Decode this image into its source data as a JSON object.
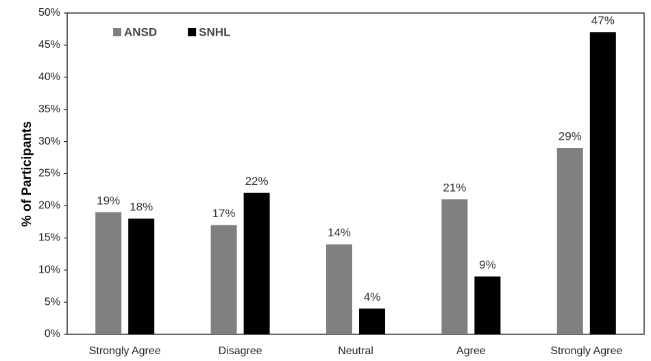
{
  "chart_data": {
    "type": "bar",
    "y_axis_label": "% of Participants",
    "categories": [
      "Strongly Agree",
      "Disagree",
      "Neutral",
      "Agree",
      "Strongly Agree"
    ],
    "series": [
      {
        "name": "ANSD",
        "color": "#808080",
        "values": [
          19,
          17,
          14,
          21,
          29
        ],
        "value_labels": [
          "19%",
          "17%",
          "14%",
          "21%",
          "29%"
        ]
      },
      {
        "name": "SNHL",
        "color": "#000000",
        "values": [
          18,
          22,
          4,
          9,
          47
        ],
        "value_labels": [
          "18%",
          "22%",
          "4%",
          "9%",
          "47%"
        ]
      }
    ],
    "ylim": [
      0,
      50
    ],
    "yticks": [
      {
        "value": 0,
        "label": "0%"
      },
      {
        "value": 5,
        "label": "5%"
      },
      {
        "value": 10,
        "label": "10%"
      },
      {
        "value": 15,
        "label": "15%"
      },
      {
        "value": 20,
        "label": "20%"
      },
      {
        "value": 25,
        "label": "25%"
      },
      {
        "value": 30,
        "label": "30%"
      },
      {
        "value": 35,
        "label": "35%"
      },
      {
        "value": 40,
        "label": "40%"
      },
      {
        "value": 45,
        "label": "45%"
      },
      {
        "value": 50,
        "label": "50%"
      }
    ],
    "grid": false,
    "legend": "top-left"
  }
}
